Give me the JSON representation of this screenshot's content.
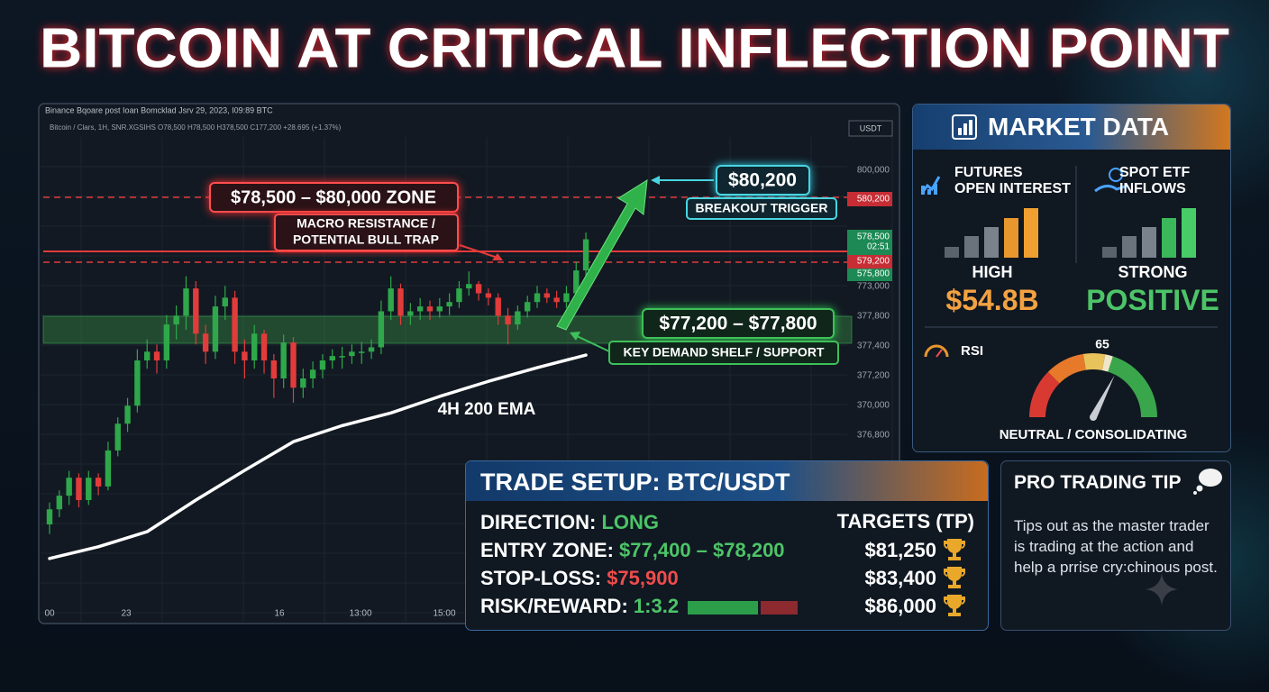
{
  "title": "BITCOIN AT CRITICAL INFLECTION POINT",
  "chart_data": {
    "type": "candlestick",
    "source_line": "Binance Bqoare post Ioan Bomcklad Jsrv 29, 2023, I09:89 BTC",
    "info_line": "Bitcoin / Clars, 1H, SNR.XGSIHS O78,500 H78,500 H378,500 C177,200 +28.695 (+1.37%)",
    "currency": "USDT",
    "ylim": [
      71500,
      81500
    ],
    "candles": [
      [
        73500,
        73950,
        73300,
        73810
      ],
      [
        73810,
        74200,
        73650,
        74090
      ],
      [
        74090,
        74600,
        73900,
        74460
      ],
      [
        74460,
        74550,
        73850,
        74000
      ],
      [
        74000,
        74600,
        73900,
        74460
      ],
      [
        74460,
        74550,
        74100,
        74280
      ],
      [
        74280,
        75200,
        74200,
        75020
      ],
      [
        75020,
        75700,
        74900,
        75570
      ],
      [
        75570,
        76100,
        75400,
        75940
      ],
      [
        75940,
        77100,
        75800,
        76870
      ],
      [
        76870,
        77300,
        76700,
        77050
      ],
      [
        77050,
        77200,
        76600,
        76870
      ],
      [
        76870,
        77800,
        76700,
        77610
      ],
      [
        77610,
        78000,
        77300,
        77790
      ],
      [
        77790,
        78600,
        77500,
        78350
      ],
      [
        78350,
        78500,
        77200,
        77420
      ],
      [
        77420,
        77600,
        76800,
        77050
      ],
      [
        77050,
        78200,
        76900,
        77980
      ],
      [
        77980,
        78400,
        77700,
        78160
      ],
      [
        78160,
        78300,
        76800,
        77050
      ],
      [
        77050,
        77300,
        76500,
        76870
      ],
      [
        76870,
        77600,
        76700,
        77420
      ],
      [
        77420,
        77500,
        76600,
        76870
      ],
      [
        76870,
        77000,
        76100,
        76500
      ],
      [
        76500,
        77400,
        76300,
        77240
      ],
      [
        77240,
        77350,
        76000,
        76310
      ],
      [
        76310,
        76700,
        76100,
        76500
      ],
      [
        76500,
        76850,
        76300,
        76680
      ],
      [
        76680,
        77000,
        76500,
        76870
      ],
      [
        76870,
        77100,
        76700,
        76960
      ],
      [
        76960,
        77150,
        76700,
        76960
      ],
      [
        76960,
        77200,
        76800,
        77050
      ],
      [
        77050,
        77250,
        76800,
        77050
      ],
      [
        77050,
        77300,
        76900,
        77140
      ],
      [
        77140,
        78100,
        77000,
        77880
      ],
      [
        77880,
        78600,
        77700,
        78350
      ],
      [
        78350,
        78450,
        77600,
        77790
      ],
      [
        77790,
        78050,
        77600,
        77880
      ],
      [
        77880,
        78150,
        77700,
        77980
      ],
      [
        77980,
        78100,
        77700,
        77880
      ],
      [
        77880,
        78150,
        77750,
        77980
      ],
      [
        77980,
        78250,
        77800,
        78070
      ],
      [
        78070,
        78500,
        77950,
        78350
      ],
      [
        78350,
        78700,
        78200,
        78440
      ],
      [
        78440,
        78500,
        78100,
        78250
      ],
      [
        78250,
        78350,
        78000,
        78160
      ],
      [
        78160,
        78250,
        77600,
        77790
      ],
      [
        77790,
        77950,
        77200,
        77610
      ],
      [
        77610,
        78000,
        77500,
        77880
      ],
      [
        77880,
        78200,
        77750,
        78070
      ],
      [
        78070,
        78400,
        77950,
        78250
      ],
      [
        78250,
        78350,
        78050,
        78160
      ],
      [
        78160,
        78300,
        77950,
        78070
      ],
      [
        78070,
        78400,
        77950,
        78250
      ],
      [
        78250,
        78900,
        78150,
        78720
      ],
      [
        78720,
        79500,
        78600,
        79360
      ]
    ],
    "ema": {
      "name": "4H 200 EMA",
      "color": "#ffffff",
      "x": [
        0,
        5,
        10,
        15,
        20,
        25,
        30,
        35,
        40,
        45,
        50,
        55
      ],
      "values": [
        72800,
        73040,
        73350,
        74000,
        74610,
        75200,
        75530,
        75790,
        76130,
        76440,
        76720,
        76980
      ]
    },
    "price_labels": [
      "800,000",
      "580,200",
      "578,500",
      "02:51",
      "579,200",
      "575,800",
      "773,000",
      "377,800",
      "377,400",
      "377,200",
      "370,000",
      "376,800"
    ],
    "time_labels": [
      "00",
      "23",
      "16",
      "13:00",
      "15:00"
    ],
    "zone_label": "$78,500 – $80,000 ZONE",
    "zone_note_1": "MACRO RESISTANCE /",
    "zone_note_2": "POTENTIAL BULL TRAP",
    "breakout_price": "$80,200",
    "breakout_label": "BREAKOUT TRIGGER",
    "support_range": "$77,200 – $77,800",
    "support_label": "KEY DEMAND SHELF / SUPPORT"
  },
  "market_data": {
    "title": "MARKET DATA",
    "futures": {
      "label_1": "FUTURES",
      "label_2": "OPEN INTEREST",
      "status": "HIGH",
      "value": "$54.8B"
    },
    "etf": {
      "label_1": "SPOT ETF",
      "label_2": "INFLOWS",
      "status": "STRONG",
      "value": "POSITIVE"
    },
    "rsi": {
      "label": "RSI",
      "value": 65,
      "status": "NEUTRAL / CONSOLIDATING"
    }
  },
  "trade_setup": {
    "title": "TRADE SETUP: BTC/USDT",
    "rows": [
      [
        "DIRECTION:",
        "LONG"
      ],
      [
        "ENTRY ZONE:",
        "$77,400 – $78,200"
      ],
      [
        "STOP-LOSS:",
        "$75,900"
      ],
      [
        "RISK/REWARD:",
        "1:3.2"
      ]
    ],
    "targets_title": "TARGETS (TP)",
    "targets": [
      "$81,250",
      "$83,400",
      "$86,000"
    ]
  },
  "pro_tip": {
    "title": "PRO TRADING TIP",
    "text": "Tips out as the master trader is trading at the action and help a prrise cry:chinous post."
  }
}
